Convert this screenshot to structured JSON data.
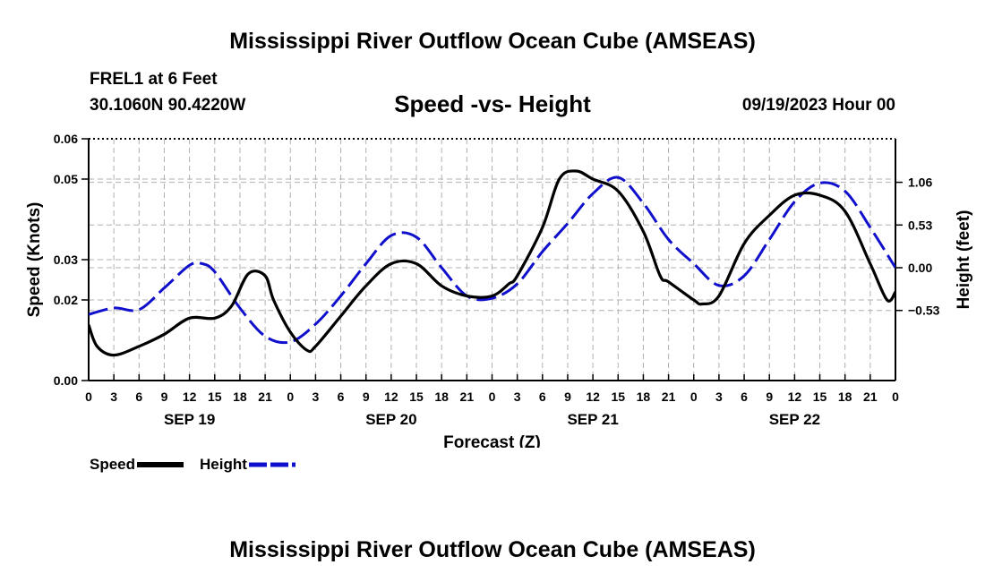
{
  "page": {
    "title_top": "Mississippi River Outflow Ocean Cube (AMSEAS)",
    "title_bottom": "Mississippi River Outflow Ocean Cube (AMSEAS)",
    "station": "FREL1 at 6 Feet",
    "coords": "30.1060N  90.4220W",
    "date": "09/19/2023 Hour 00"
  },
  "colors": {
    "speed": "#000000",
    "height": "#1010cc",
    "grid": "#b0b0b0"
  },
  "chart_data": {
    "type": "line",
    "title": "Speed -vs- Height",
    "xlabel": "Forecast (Z)",
    "ylabel": "Speed (Knots)",
    "y2label": "Height (feet)",
    "xlim": [
      0,
      96
    ],
    "ylim": [
      0,
      0.06
    ],
    "y_ticks": [
      0,
      0.02,
      0.03,
      0.05,
      0.06
    ],
    "y_tick_labels": [
      "0.00",
      "0.02",
      "0.03",
      "0.05",
      "0.06"
    ],
    "y2lim": [
      -1.4,
      1.6
    ],
    "y2_ticks": [
      1.06,
      0.53,
      0.0,
      -0.53
    ],
    "y2_tick_labels": [
      "1.06",
      "0.53",
      "0.00",
      "−0.53"
    ],
    "x_ticks": [
      0,
      3,
      6,
      9,
      12,
      15,
      18,
      21,
      24,
      27,
      30,
      33,
      36,
      39,
      42,
      45,
      48,
      51,
      54,
      57,
      60,
      63,
      66,
      69,
      72,
      75,
      78,
      81,
      84,
      87,
      90,
      93,
      96
    ],
    "x_tick_labels": [
      "0",
      "3",
      "6",
      "9",
      "12",
      "15",
      "18",
      "21",
      "0",
      "3",
      "6",
      "9",
      "12",
      "15",
      "18",
      "21",
      "0",
      "3",
      "6",
      "9",
      "12",
      "15",
      "18",
      "21",
      "0",
      "3",
      "6",
      "9",
      "12",
      "15",
      "18",
      "21",
      "0"
    ],
    "day_labels": [
      {
        "label": "SEP 19",
        "x": 12
      },
      {
        "label": "SEP 20",
        "x": 36
      },
      {
        "label": "SEP 21",
        "x": 60
      },
      {
        "label": "SEP 22",
        "x": 84
      }
    ],
    "legend": [
      {
        "name": "Speed",
        "style": "solid"
      },
      {
        "name": "Height",
        "style": "dashed"
      }
    ],
    "series": [
      {
        "name": "Speed",
        "axis": "left",
        "x": [
          0,
          1,
          3,
          6,
          9,
          12,
          15,
          17,
          19,
          21,
          22,
          24,
          26,
          27,
          30,
          33,
          36,
          39,
          42,
          45,
          48,
          50,
          51,
          54,
          56,
          58,
          60,
          63,
          66,
          68,
          69,
          72,
          73,
          75,
          78,
          81,
          84,
          87,
          90,
          93,
          95,
          96
        ],
        "y": [
          0.0138,
          0.0085,
          0.0063,
          0.0085,
          0.0115,
          0.0155,
          0.0155,
          0.0185,
          0.0265,
          0.026,
          0.02,
          0.012,
          0.0075,
          0.0085,
          0.016,
          0.0235,
          0.029,
          0.029,
          0.0235,
          0.021,
          0.021,
          0.024,
          0.026,
          0.038,
          0.05,
          0.052,
          0.05,
          0.047,
          0.037,
          0.026,
          0.0245,
          0.02,
          0.019,
          0.021,
          0.034,
          0.041,
          0.046,
          0.046,
          0.042,
          0.029,
          0.02,
          0.022
        ]
      },
      {
        "name": "Height",
        "axis": "right",
        "x": [
          0,
          3,
          6,
          9,
          12,
          13.5,
          15,
          18,
          21,
          24,
          27,
          30,
          33,
          36,
          39,
          42,
          45,
          48,
          51,
          54,
          57,
          60,
          63,
          66,
          69,
          72,
          75,
          78,
          81,
          84,
          87,
          90,
          93,
          96
        ],
        "y": [
          -0.58,
          -0.5,
          -0.52,
          -0.25,
          0.03,
          0.05,
          -0.05,
          -0.5,
          -0.85,
          -0.92,
          -0.7,
          -0.35,
          0.05,
          0.4,
          0.38,
          0.0,
          -0.35,
          -0.38,
          -0.2,
          0.2,
          0.55,
          0.92,
          1.12,
          0.8,
          0.35,
          0.05,
          -0.22,
          -0.1,
          0.35,
          0.82,
          1.05,
          0.95,
          0.5,
          0.0
        ]
      }
    ]
  }
}
